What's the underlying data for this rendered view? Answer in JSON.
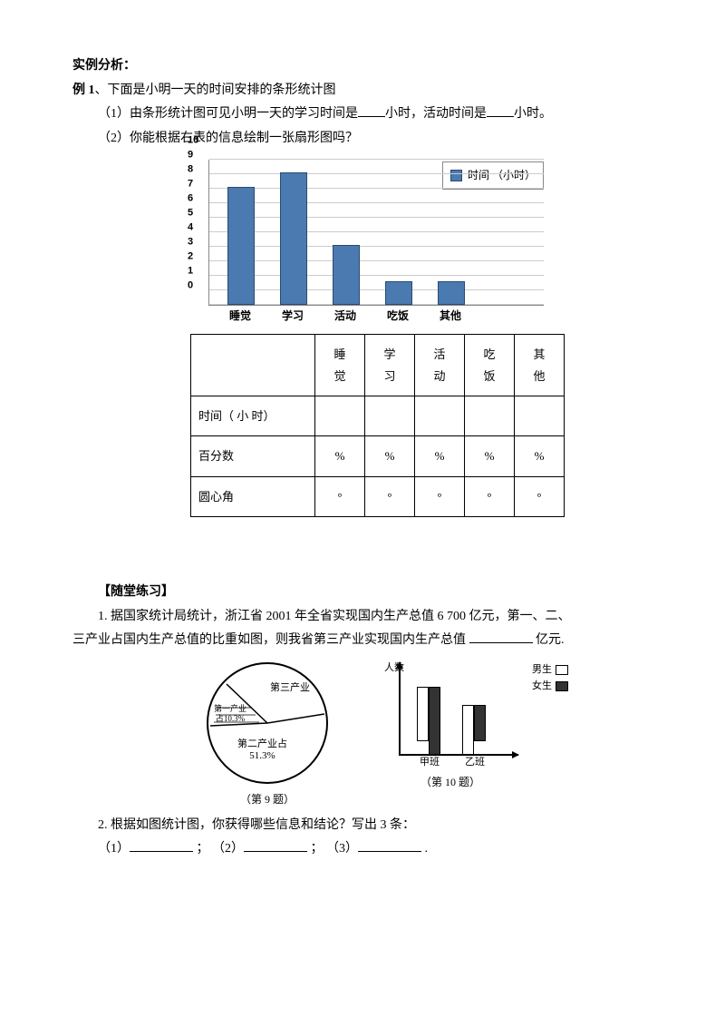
{
  "heading": "实例分析：",
  "example1": {
    "title_prefix": "例 1",
    "title_rest": "、下面是小明一天的时间安排的条形统计图",
    "q1_a": "（1）由条形统计图可见小明一天的学习时间是",
    "q1_b": "小时，活动时间是",
    "q1_c": "小时。",
    "q2": "（2）你能根据右表的信息绘制一张扇形图吗？"
  },
  "barchart": {
    "type": "bar",
    "categories": [
      "睡觉",
      "学习",
      "活动",
      "吃饭",
      "其他"
    ],
    "values": [
      8,
      9,
      4,
      1.5,
      1.5
    ],
    "ymax": 10,
    "ytick_step": 1,
    "bar_color": "#4a7ab0",
    "bar_border": "#2a4a70",
    "grid_color": "#cccccc",
    "legend_label": "时间 （小时）",
    "label_fontsize": 12
  },
  "table": {
    "row_heads": [
      "",
      "时间（ 小  时）",
      "百分数",
      "圆心角"
    ],
    "col_heads": [
      "睡觉",
      "学习",
      "活动",
      "吃饭",
      "其他"
    ],
    "col_heads_split": [
      [
        "睡",
        "觉"
      ],
      [
        "学",
        "习"
      ],
      [
        "活",
        "动"
      ],
      [
        "吃",
        "饭"
      ],
      [
        "其",
        "他"
      ]
    ],
    "percent_symbol": "%",
    "degree_symbol": "°"
  },
  "practice": {
    "heading": "【随堂练习】",
    "q1_a": "1. 据国家统计局统计，浙江省 2001 年全省实现国内生产总值 6 700 亿元，第一、二、",
    "q1_b": "三产业占国内生产总值的比重如图，则我省第三产业实现国内生产总值",
    "q1_c": "亿元.",
    "pie": {
      "type": "pie",
      "labels": {
        "third": "第三产业",
        "first": "第一产业\n占10.3%",
        "second": "第二产业占\n51.3%"
      },
      "caption": "（第 9 题）"
    },
    "smallbar": {
      "type": "bar",
      "ylabel": "人数",
      "groups": [
        "甲班",
        "乙班"
      ],
      "series": [
        {
          "name": "男生",
          "color": "#ffffff"
        },
        {
          "name": "女生",
          "color": "#333333"
        }
      ],
      "values": [
        [
          60,
          75
        ],
        [
          55,
          40
        ]
      ],
      "caption": "（第 10 题）"
    },
    "q2": "2.  根据如图统计图，你获得哪些信息和结论？写出 3 条：",
    "q2_items": [
      "（1）",
      "；  （2）",
      "；  （3）",
      "."
    ]
  }
}
